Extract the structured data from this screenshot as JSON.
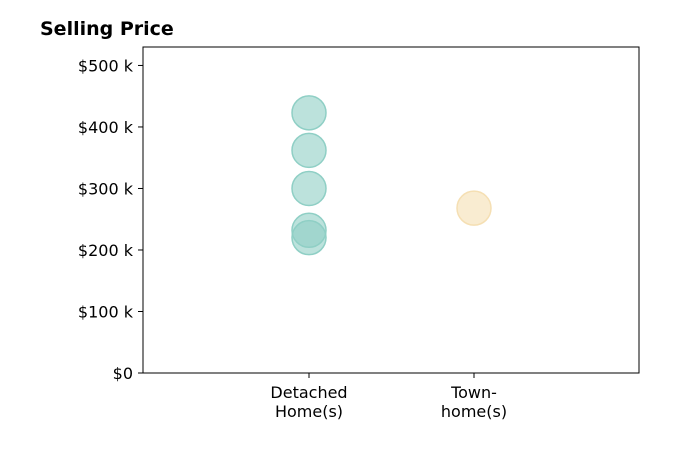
{
  "chart_data": {
    "type": "scatter",
    "title": "Selling Price",
    "xlabel": "",
    "ylabel": "",
    "categories": [
      [
        "Detached",
        "Home(s)"
      ],
      [
        "Town-",
        "home(s)"
      ]
    ],
    "ylim": [
      0,
      530000
    ],
    "yticks": [
      0,
      100000,
      200000,
      300000,
      400000,
      500000
    ],
    "ytick_labels": [
      "$0",
      "$100 k",
      "$200 k",
      "$300 k",
      "$400 k",
      "$500 k"
    ],
    "grid": false,
    "series": [
      {
        "category_index": 0,
        "color": "#8fcfc5",
        "values": [
          423000,
          362000,
          300000,
          232000,
          220000
        ]
      },
      {
        "category_index": 1,
        "color": "#f5dfb3",
        "values": [
          268000
        ]
      }
    ]
  }
}
